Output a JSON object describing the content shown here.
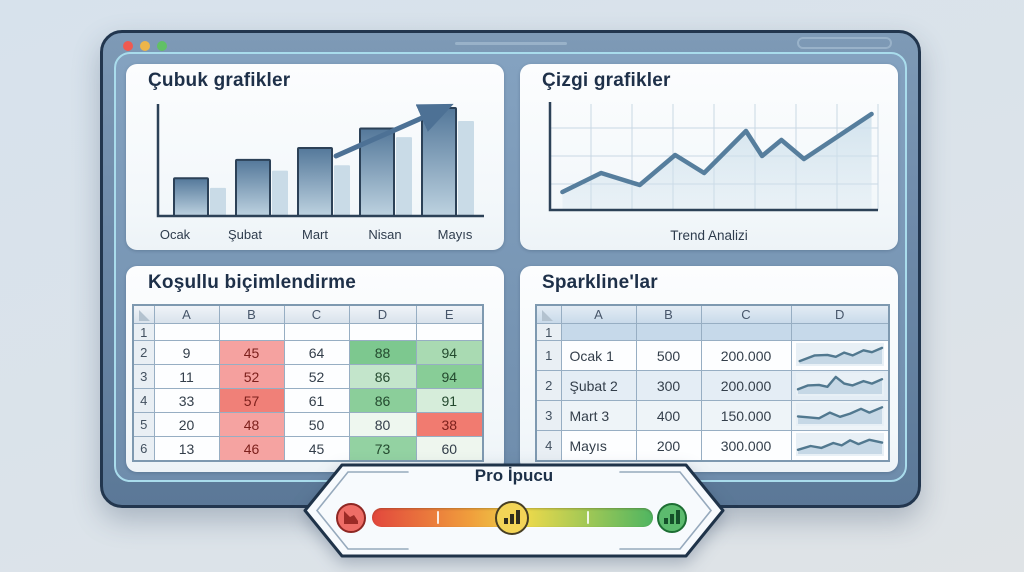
{
  "window": {
    "traffic_lights": [
      {
        "name": "close",
        "color": "#ef5a50"
      },
      {
        "name": "minimize",
        "color": "#edb549"
      },
      {
        "name": "zoom",
        "color": "#61c065"
      }
    ]
  },
  "banner": {
    "title": "Pro İpucu",
    "gradient_colors": [
      "#e2473d",
      "#f09e3c",
      "#ecd94b",
      "#4fb561"
    ],
    "icon_colors": {
      "declining_chart_circle": "#ee6d66",
      "bar_chart_circle": "#f3d457",
      "growing_bars_circle": "#5cbb6e"
    }
  },
  "chart_data": [
    {
      "id": "bar_chart",
      "type": "bar",
      "title": "Çubuk grafikler",
      "categories": [
        "Ocak",
        "Şubat",
        "Mart",
        "Nisan",
        "Mayıs"
      ],
      "values": [
        35,
        52,
        63,
        81,
        100
      ],
      "shadow_values": [
        26,
        42,
        47,
        73,
        88
      ],
      "ylim": [
        0,
        100
      ],
      "annotations": [
        "upward-trend-arrow"
      ],
      "bar_color_top": "#54789a",
      "bar_color_bottom": "#bdd2e0",
      "shadow_color": "#c9dbe7"
    },
    {
      "id": "line_chart",
      "type": "line",
      "title": "Çizgi grafikler",
      "xlabel": "Trend Analizi",
      "x": [
        2,
        14,
        26,
        37,
        46,
        59,
        64,
        70,
        77,
        98
      ],
      "y": [
        16,
        35,
        23,
        53,
        35,
        77,
        52,
        68,
        49,
        94
      ],
      "ylim": [
        0,
        100
      ],
      "grid": true,
      "line_color": "#567e9d",
      "area_color": "#cfe1ec"
    },
    {
      "id": "conditional_formatting_table",
      "type": "table",
      "title": "Koşullu biçimlendirme",
      "columns": [
        "A",
        "B",
        "C",
        "D",
        "E"
      ],
      "row_numbers": [
        "1",
        "2",
        "3",
        "4",
        "5",
        "6"
      ],
      "rows": [
        [
          "",
          "",
          "",
          "",
          ""
        ],
        [
          "9",
          "45",
          "64",
          "88",
          "94"
        ],
        [
          "11",
          "52",
          "52",
          "86",
          "94"
        ],
        [
          "33",
          "57",
          "61",
          "86",
          "91"
        ],
        [
          "20",
          "48",
          "50",
          "80",
          "38"
        ],
        [
          "13",
          "46",
          "45",
          "73",
          "60"
        ]
      ],
      "cell_colors": [
        [
          "",
          "",
          "",
          "",
          ""
        ],
        [
          "",
          "#f5a2a0",
          "",
          "#7dc88f",
          "#a9dab2"
        ],
        [
          "",
          "#f5a09e",
          "",
          "#c3e5cb",
          "#88cd97"
        ],
        [
          "",
          "#f08078",
          "",
          "#8bce9a",
          "#d6edda"
        ],
        [
          "",
          "#f5a3a1",
          "",
          "#eef7ef",
          "#f17b70"
        ],
        [
          "",
          "#f5a3a1",
          "",
          "#93d2a2",
          "#eef6ee"
        ]
      ]
    },
    {
      "id": "sparkline_table",
      "type": "table",
      "title": "Sparkline'lar",
      "columns": [
        "A",
        "B",
        "C",
        "D"
      ],
      "spacer_row_number": "1",
      "row_numbers": [
        "1",
        "2",
        "3",
        "4"
      ],
      "rows": [
        [
          "Ocak 1",
          "500",
          "200.000"
        ],
        [
          "Şubat 2",
          "300",
          "200.000"
        ],
        [
          "Mart 3",
          "400",
          "150.000"
        ],
        [
          "Mayıs",
          "200",
          "300.000"
        ]
      ],
      "row_colors": [
        "#fdfeff",
        "#e4edf5",
        "#eef4f8",
        "#fdfeff"
      ],
      "sparklines": [
        [
          [
            2,
            15
          ],
          [
            20,
            45
          ],
          [
            35,
            48
          ],
          [
            45,
            38
          ],
          [
            55,
            60
          ],
          [
            65,
            45
          ],
          [
            78,
            72
          ],
          [
            88,
            62
          ],
          [
            100,
            85
          ]
        ],
        [
          [
            0,
            25
          ],
          [
            12,
            45
          ],
          [
            25,
            48
          ],
          [
            35,
            38
          ],
          [
            45,
            90
          ],
          [
            55,
            55
          ],
          [
            65,
            45
          ],
          [
            78,
            68
          ],
          [
            88,
            55
          ],
          [
            100,
            78
          ]
        ],
        [
          [
            0,
            40
          ],
          [
            12,
            35
          ],
          [
            25,
            30
          ],
          [
            38,
            60
          ],
          [
            50,
            38
          ],
          [
            62,
            55
          ],
          [
            75,
            80
          ],
          [
            85,
            60
          ],
          [
            100,
            88
          ]
        ],
        [
          [
            0,
            22
          ],
          [
            15,
            42
          ],
          [
            28,
            32
          ],
          [
            42,
            58
          ],
          [
            52,
            45
          ],
          [
            62,
            72
          ],
          [
            72,
            52
          ],
          [
            85,
            75
          ],
          [
            100,
            60
          ]
        ]
      ]
    }
  ]
}
